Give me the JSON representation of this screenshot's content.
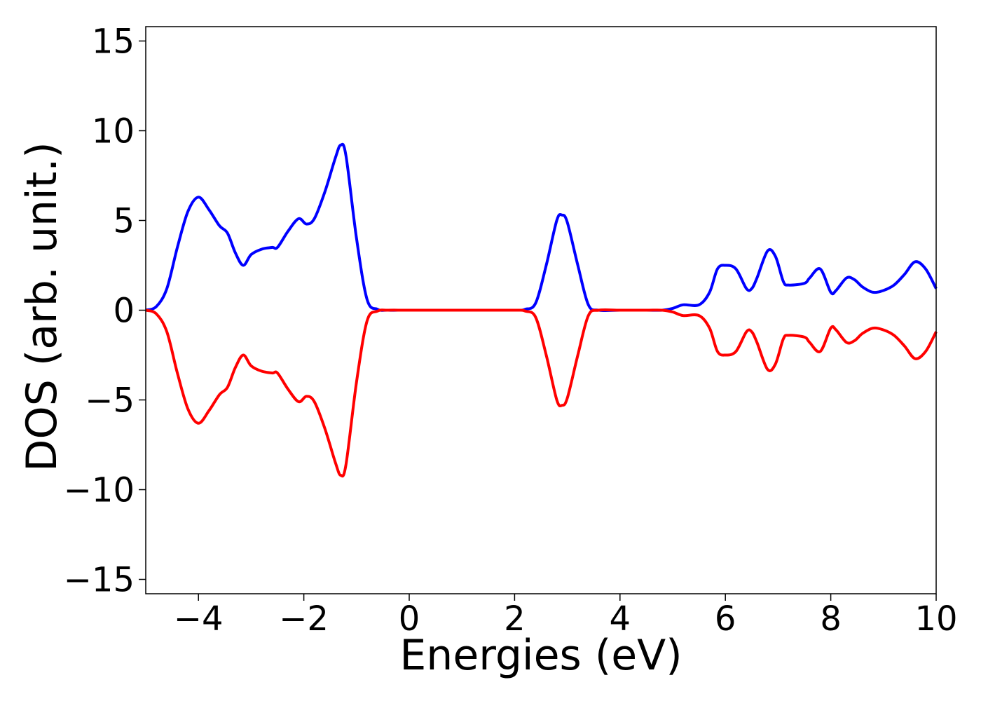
{
  "chart_data": {
    "type": "line",
    "title": "",
    "xlabel": "Energies (eV)",
    "ylabel": "DOS (arb. unit.)",
    "xlim": [
      -5,
      10
    ],
    "ylim": [
      -15.8,
      15.8
    ],
    "xticks": [
      -4,
      -2,
      0,
      2,
      4,
      6,
      8,
      10
    ],
    "xtick_labels": [
      "−4",
      "−2",
      "0",
      "2",
      "4",
      "6",
      "8",
      "10"
    ],
    "yticks": [
      15,
      10,
      5,
      0,
      -5,
      -10,
      -15
    ],
    "ytick_labels": [
      "15",
      "10",
      "5",
      "0",
      "−5",
      "−10",
      "−15"
    ],
    "grid": false,
    "legend": "none",
    "series": [
      {
        "color": "#0000ff",
        "x": [
          -5.0,
          -4.8,
          -4.6,
          -4.4,
          -4.2,
          -4.0,
          -3.8,
          -3.6,
          -3.45,
          -3.3,
          -3.15,
          -3.0,
          -2.8,
          -2.6,
          -2.5,
          -2.3,
          -2.1,
          -1.95,
          -1.8,
          -1.6,
          -1.4,
          -1.3,
          -1.2,
          -1.0,
          -0.8,
          -0.6,
          -0.4,
          0.0,
          1.0,
          2.0,
          2.2,
          2.4,
          2.6,
          2.8,
          2.9,
          3.0,
          3.2,
          3.4,
          3.6,
          4.0,
          4.5,
          4.8,
          5.0,
          5.2,
          5.5,
          5.7,
          5.85,
          6.0,
          6.2,
          6.4,
          6.5,
          6.6,
          6.8,
          6.95,
          7.1,
          7.2,
          7.5,
          7.6,
          7.8,
          8.0,
          8.1,
          8.3,
          8.45,
          8.6,
          8.8,
          9.0,
          9.2,
          9.4,
          9.6,
          9.8,
          10.0
        ],
        "y": [
          0.0,
          0.2,
          1.2,
          3.5,
          5.5,
          6.3,
          5.6,
          4.7,
          4.3,
          3.2,
          2.5,
          3.1,
          3.4,
          3.5,
          3.5,
          4.4,
          5.1,
          4.8,
          5.1,
          6.6,
          8.5,
          9.2,
          8.6,
          4.0,
          0.6,
          0.05,
          0.0,
          0.0,
          0.0,
          0.0,
          0.05,
          0.4,
          2.5,
          5.0,
          5.3,
          4.9,
          2.5,
          0.3,
          0.0,
          0.0,
          0.0,
          0.0,
          0.1,
          0.3,
          0.3,
          1.0,
          2.3,
          2.5,
          2.3,
          1.2,
          1.2,
          1.8,
          3.3,
          3.0,
          1.6,
          1.4,
          1.5,
          1.8,
          2.3,
          1.0,
          1.1,
          1.8,
          1.7,
          1.3,
          1.0,
          1.1,
          1.4,
          2.0,
          2.7,
          2.3,
          1.2
        ]
      },
      {
        "color": "#ff0000",
        "x": [
          -5.0,
          -4.8,
          -4.6,
          -4.4,
          -4.2,
          -4.0,
          -3.8,
          -3.6,
          -3.45,
          -3.3,
          -3.15,
          -3.0,
          -2.8,
          -2.6,
          -2.5,
          -2.3,
          -2.1,
          -1.95,
          -1.8,
          -1.6,
          -1.4,
          -1.3,
          -1.2,
          -1.0,
          -0.8,
          -0.6,
          -0.4,
          0.0,
          1.0,
          2.0,
          2.2,
          2.4,
          2.6,
          2.8,
          2.9,
          3.0,
          3.2,
          3.4,
          3.6,
          4.0,
          4.5,
          4.8,
          5.0,
          5.2,
          5.5,
          5.7,
          5.85,
          6.0,
          6.2,
          6.4,
          6.5,
          6.6,
          6.8,
          6.95,
          7.1,
          7.2,
          7.5,
          7.6,
          7.8,
          8.0,
          8.1,
          8.3,
          8.45,
          8.6,
          8.8,
          9.0,
          9.2,
          9.4,
          9.6,
          9.8,
          10.0
        ],
        "y": [
          0.0,
          -0.2,
          -1.2,
          -3.5,
          -5.5,
          -6.3,
          -5.6,
          -4.7,
          -4.3,
          -3.2,
          -2.5,
          -3.1,
          -3.4,
          -3.5,
          -3.5,
          -4.4,
          -5.1,
          -4.8,
          -5.1,
          -6.6,
          -8.5,
          -9.2,
          -8.6,
          -4.0,
          -0.6,
          -0.05,
          0.0,
          0.0,
          0.0,
          0.0,
          -0.05,
          -0.4,
          -2.5,
          -5.0,
          -5.3,
          -4.9,
          -2.5,
          -0.3,
          0.0,
          0.0,
          0.0,
          0.0,
          -0.1,
          -0.3,
          -0.3,
          -1.0,
          -2.3,
          -2.5,
          -2.3,
          -1.2,
          -1.2,
          -1.8,
          -3.3,
          -3.0,
          -1.6,
          -1.4,
          -1.5,
          -1.8,
          -2.3,
          -1.0,
          -1.1,
          -1.8,
          -1.7,
          -1.3,
          -1.0,
          -1.1,
          -1.4,
          -2.0,
          -2.7,
          -2.3,
          -1.2
        ]
      }
    ]
  }
}
